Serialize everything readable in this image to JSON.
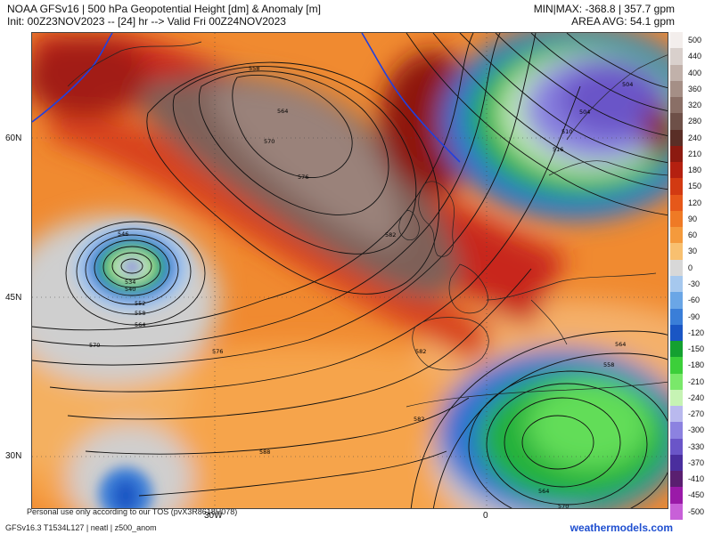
{
  "header": {
    "title": "NOAA GFSv16 | 500 hPa Geopotential Height [dm] & Anomaly [m]",
    "init": "Init: 00Z23NOV2023 -- [24] hr --> Valid Fri 00Z24NOV2023",
    "minmax": "MIN|MAX: -368.8 | 357.7 gpm",
    "area_avg": "AREA AVG: 54.1 gpm"
  },
  "axes": {
    "lat_labels": [
      "60N",
      "45N",
      "30N"
    ],
    "lon_labels": [
      "30W",
      "0"
    ]
  },
  "contour_labels": [
    "558",
    "564",
    "570",
    "576",
    "582",
    "546",
    "534",
    "540",
    "552",
    "558",
    "564",
    "570",
    "576",
    "582",
    "588",
    "504",
    "504",
    "510",
    "516",
    "564",
    "558",
    "564",
    "570",
    "582"
  ],
  "legend": {
    "values": [
      "500",
      "440",
      "400",
      "360",
      "320",
      "280",
      "240",
      "210",
      "180",
      "150",
      "120",
      "90",
      "60",
      "30",
      "0",
      "-30",
      "-60",
      "-90",
      "-120",
      "-150",
      "-180",
      "-210",
      "-240",
      "-270",
      "-300",
      "-330",
      "-370",
      "-410",
      "-450",
      "-500"
    ],
    "colors": [
      "#f3eeec",
      "#d9d0cc",
      "#c1b1aa",
      "#a58f86",
      "#8a6f66",
      "#6e5048",
      "#5a2e26",
      "#8c1a10",
      "#b42010",
      "#d23a12",
      "#e6581a",
      "#ef7a25",
      "#f49a3c",
      "#f8c070",
      "#d8d8d8",
      "#a6c8ee",
      "#6aa6e6",
      "#3a7ed8",
      "#1a56c4",
      "#14a030",
      "#3ccf3a",
      "#7ae86a",
      "#c6f3b4",
      "#b9b9ee",
      "#8c82e0",
      "#6a55c8",
      "#4a2e9e",
      "#5a1f70",
      "#9a1aa8",
      "#c860d8"
    ]
  },
  "footer": {
    "disclaimer": "Personal use only according to our TOS (pvX3R8618H078)",
    "model_id": "GFSv16.3 T1534L127 | neatl | z500_anom",
    "site": "weathermodels.com"
  }
}
